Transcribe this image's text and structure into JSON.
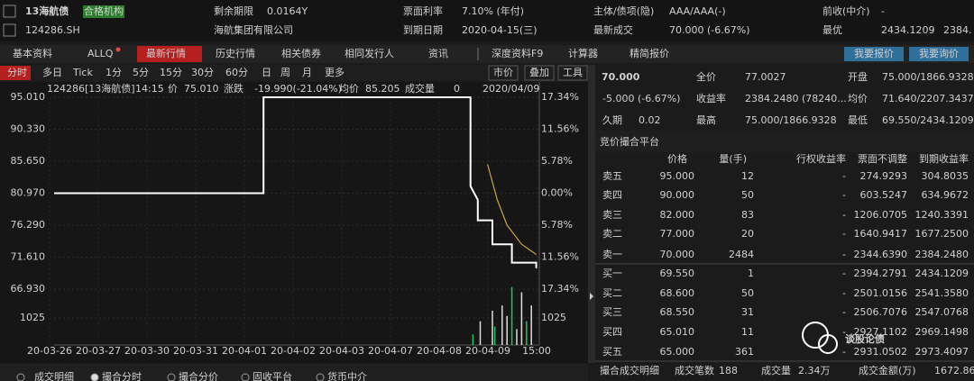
{
  "header": {
    "name": "13海航债",
    "badge": "合格机构",
    "code": "124286.SH",
    "issuer": "海航集团有限公司",
    "fields": [
      {
        "label": "剩余期限",
        "value": "0.0164Y"
      },
      {
        "label": "票面利率",
        "value": "7.10% (年付)"
      },
      {
        "label": "主体/债项(隐)",
        "value": "AAA/AAA(-)"
      },
      {
        "label": "前收(中介)",
        "value": "-"
      },
      {
        "label": "到期日期",
        "value": "2020-04-15(三)"
      },
      {
        "label": "最新成交",
        "value": "70.000 (-6.67%)"
      },
      {
        "label": "最优",
        "value": "2434.1209"
      }
    ],
    "best2": "2384."
  },
  "tabs": [
    "基本资料",
    "ALLQ",
    "最新行情",
    "历史行情",
    "相关债券",
    "相同发行人",
    "资讯",
    "深度资料F9",
    "计算器",
    "精简报价"
  ],
  "active_tab": 2,
  "buttons": [
    "我要报价",
    "我要询价"
  ],
  "toolbar": {
    "periods": [
      "分时",
      "多日",
      "Tick",
      "1分",
      "5分",
      "15分",
      "30分",
      "60分",
      "日",
      "周",
      "月",
      "更多"
    ],
    "tools": [
      "市价",
      "叠加",
      "工具"
    ]
  },
  "chart": {
    "info": [
      "124286[13海航债]",
      "14:15",
      "价",
      "75.010",
      "涨跌",
      "-19.990(-21.04%)",
      "均价",
      "85.205",
      "成交量",
      "0",
      "2020/04/09"
    ],
    "ylim": [
      66.93,
      95.01
    ],
    "yticks": [
      {
        "value": 95.01,
        "label": "95.010"
      },
      {
        "value": 90.33,
        "label": "90.330"
      },
      {
        "value": 85.65,
        "label": "85.650"
      },
      {
        "value": 80.97,
        "label": "80.970"
      },
      {
        "value": 76.29,
        "label": "76.290"
      },
      {
        "value": 71.61,
        "label": "71.610"
      },
      {
        "value": 66.93,
        "label": "66.930"
      }
    ],
    "pct_labels": [
      "17.34%",
      "11.56%",
      "5.78%",
      "0.00%",
      "5.78%",
      "11.56%",
      "17.34%"
    ],
    "volume_tick": 1025,
    "dates": [
      "20-03-26",
      "20-03-27",
      "20-03-30",
      "20-03-31",
      "20-04-01",
      "20-04-02",
      "20-04-03",
      "20-04-07",
      "20-04-08",
      "20-04-09",
      "15:00"
    ],
    "price": {
      "x": [
        0,
        4.3,
        4.3,
        8.55,
        8.55,
        8.7,
        8.7,
        9.0,
        9.0,
        9.4,
        9.4,
        9.9,
        9.9
      ],
      "values": [
        80.97,
        80.97,
        95.01,
        95.01,
        82.0,
        80.0,
        77.0,
        77.0,
        73.5,
        73.5,
        70.8,
        70.8,
        70.0
      ]
    },
    "avg": {
      "x": [
        8.9,
        9.1,
        9.3,
        9.6,
        9.9
      ],
      "values": [
        85.2,
        80.0,
        76.3,
        73.5,
        72.0
      ]
    },
    "volume": {
      "x": [
        8.6,
        8.75,
        9.0,
        9.05,
        9.2,
        9.3,
        9.4,
        9.5,
        9.6,
        9.7,
        9.8
      ],
      "values": [
        400,
        900,
        1300,
        700,
        1500,
        1100,
        2200,
        600,
        2000,
        900,
        1500
      ]
    }
  },
  "quote": {
    "last": "70.000",
    "change": "-5.000 (-6.67%)",
    "stats": [
      [
        "全价",
        "77.0027"
      ],
      [
        "开盘",
        "75.000/1866.9328"
      ],
      [
        "收益率",
        "2384.2480 (78240..."
      ],
      [
        "均价",
        "71.640/2207.3437"
      ],
      [
        "久期",
        "0.02"
      ],
      [
        "最高",
        "75.000/1866.9328"
      ],
      [
        "最低",
        "69.550/2434.1209"
      ]
    ]
  },
  "book": {
    "title": "竞价撮合平台",
    "columns": [
      "价格",
      "量(手)",
      "行权收益率",
      "票面不调整",
      "到期收益率"
    ],
    "rows": [
      [
        "卖五",
        "95.000",
        "12",
        "-",
        "274.9293",
        "304.8035"
      ],
      [
        "卖四",
        "90.000",
        "50",
        "-",
        "603.5247",
        "634.9672"
      ],
      [
        "卖三",
        "82.000",
        "83",
        "-",
        "1206.0705",
        "1240.3391"
      ],
      [
        "卖二",
        "77.000",
        "20",
        "-",
        "1640.9417",
        "1677.2500"
      ],
      [
        "卖一",
        "70.000",
        "2484",
        "-",
        "2344.6390",
        "2384.2480"
      ],
      [
        "买一",
        "69.550",
        "1",
        "-",
        "2394.2791",
        "2434.1209"
      ],
      [
        "买二",
        "68.600",
        "50",
        "-",
        "2501.0156",
        "2541.3580"
      ],
      [
        "买三",
        "68.550",
        "31",
        "-",
        "2506.7076",
        "2547.0768"
      ],
      [
        "买四",
        "65.010",
        "11",
        "-",
        "2927.1102",
        "2969.1498"
      ],
      [
        "买五",
        "65.000",
        "361",
        "-",
        "2931.0502",
        "2973.4097"
      ]
    ]
  },
  "footer": {
    "summary": [
      "撮合成交明细",
      "成交笔数",
      "188",
      "成交量",
      "2.34万",
      "成交金额(万)",
      "1672.86"
    ],
    "tabs": [
      "成交明细",
      "撮合分时",
      "撮合分价",
      "固收平台",
      "货币中介"
    ],
    "active_tab": 1
  },
  "watermark": "谈股论债"
}
